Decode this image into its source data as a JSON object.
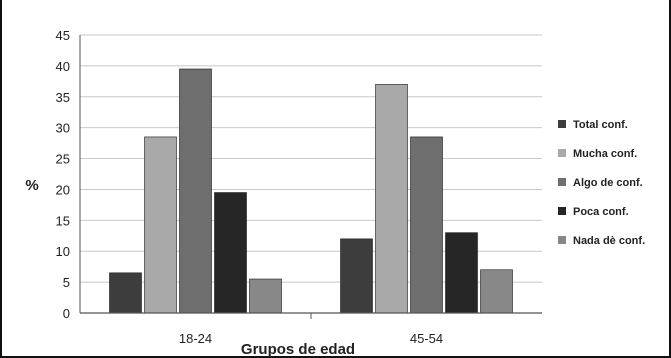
{
  "chart_data": {
    "type": "bar",
    "title": "",
    "xlabel": "Grupos de edad",
    "ylabel": "%",
    "ylim": [
      0,
      45
    ],
    "yticks": [
      "0",
      "5",
      "10",
      "15",
      "20",
      "25",
      "30",
      "35",
      "40",
      "45"
    ],
    "categories": [
      "18-24",
      "45-54"
    ],
    "grid": true,
    "legend_position": "right",
    "series": [
      {
        "name": "Total conf.",
        "color": "#3d3d3d",
        "values": [
          6.5,
          12
        ]
      },
      {
        "name": "Mucha conf.",
        "color": "#a9a9a9",
        "values": [
          28.5,
          37
        ]
      },
      {
        "name": "Algo de conf.",
        "color": "#6e6e6e",
        "values": [
          39.5,
          28.5
        ]
      },
      {
        "name": "Poca conf.",
        "color": "#262626",
        "values": [
          19.5,
          13
        ]
      },
      {
        "name": "Nada dè conf.",
        "color": "#888888",
        "values": [
          5.5,
          7
        ]
      }
    ]
  }
}
